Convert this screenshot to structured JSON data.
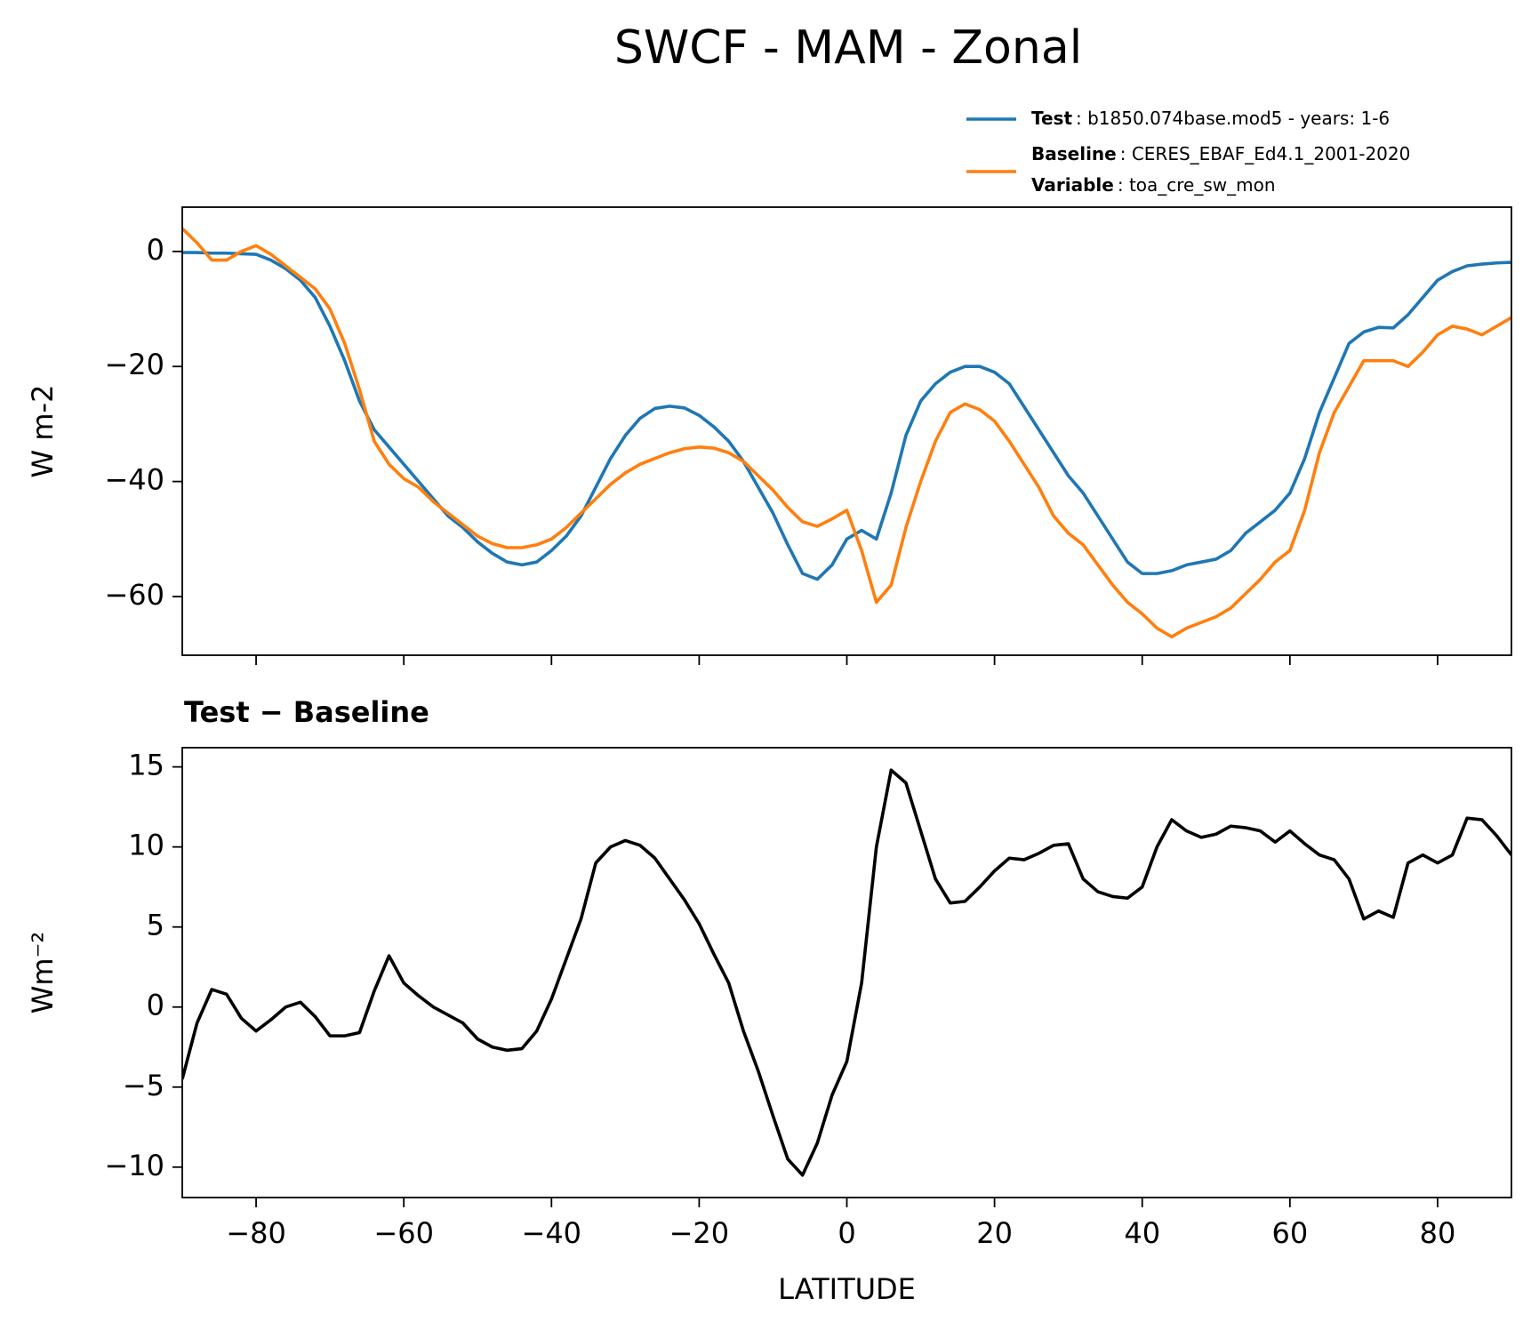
{
  "title": "SWCF - MAM - Zonal",
  "chart_data": [
    {
      "type": "line",
      "ylabel": "W m-2",
      "x": [
        -90,
        -88,
        -86,
        -84,
        -82,
        -80,
        -78,
        -76,
        -74,
        -72,
        -70,
        -68,
        -66,
        -64,
        -62,
        -60,
        -58,
        -56,
        -54,
        -52,
        -50,
        -48,
        -46,
        -44,
        -42,
        -40,
        -38,
        -36,
        -34,
        -32,
        -30,
        -28,
        -26,
        -24,
        -22,
        -20,
        -18,
        -16,
        -14,
        -12,
        -10,
        -8,
        -6,
        -4,
        -2,
        0,
        2,
        4,
        6,
        8,
        10,
        12,
        14,
        16,
        18,
        20,
        22,
        24,
        26,
        28,
        30,
        32,
        34,
        36,
        38,
        40,
        42,
        44,
        46,
        48,
        50,
        52,
        54,
        56,
        58,
        60,
        62,
        64,
        66,
        68,
        70,
        72,
        74,
        76,
        78,
        80,
        82,
        84,
        86,
        88,
        90
      ],
      "series": [
        {
          "name": "Test",
          "label": ": b1850.074base.mod5 - years: 1-6",
          "color": "#1f77b4",
          "values": [
            -0.2,
            -0.2,
            -0.3,
            -0.3,
            -0.4,
            -0.5,
            -1.5,
            -3,
            -5,
            -8,
            -13,
            -19,
            -26,
            -31,
            -34,
            -37,
            -40,
            -43,
            -46,
            -48,
            -50.5,
            -52.5,
            -54,
            -54.5,
            -54,
            -52,
            -49.5,
            -46,
            -41,
            -36,
            -32,
            -29,
            -27.3,
            -26.9,
            -27.2,
            -28.5,
            -30.5,
            -33,
            -36.5,
            -41,
            -45.5,
            -51,
            -56,
            -57,
            -54.5,
            -50,
            -48.5,
            -50,
            -42,
            -32,
            -26,
            -23,
            -21,
            -20,
            -20,
            -21,
            -23,
            -27,
            -31,
            -35,
            -39,
            -42,
            -46,
            -50,
            -54,
            -56,
            -56,
            -55.5,
            -54.5,
            -54,
            -53.5,
            -52,
            -49,
            -47,
            -45,
            -42,
            -36,
            -28,
            -22,
            -16,
            -14,
            -13.2,
            -13.3,
            -11,
            -8,
            -5,
            -3.5,
            -2.5,
            -2.2,
            -2,
            -1.9
          ]
        },
        {
          "name": "Baseline",
          "label": ": CERES_EBAF_Ed4.1_2001-2020",
          "color": "#ff7f0e",
          "values": [
            4,
            1.5,
            -1.5,
            -1.5,
            0,
            1,
            -0.5,
            -2.5,
            -4.5,
            -6.5,
            -10,
            -16,
            -24,
            -33,
            -37,
            -39.5,
            -41,
            -43.5,
            -45.5,
            -47.5,
            -49.5,
            -50.8,
            -51.5,
            -51.5,
            -51,
            -50,
            -48,
            -45.5,
            -43,
            -40.5,
            -38.5,
            -37,
            -36,
            -35,
            -34.3,
            -34,
            -34.2,
            -35,
            -36.5,
            -39,
            -41.5,
            -44.5,
            -47,
            -47.8,
            -46.5,
            -45,
            -52,
            -61,
            -58,
            -48,
            -40,
            -33,
            -28,
            -26.5,
            -27.5,
            -29.5,
            -33,
            -37,
            -41,
            -46,
            -49,
            -51,
            -54.5,
            -58,
            -61,
            -63,
            -65.5,
            -67,
            -65.5,
            -64.5,
            -63.5,
            -62,
            -59.5,
            -57,
            -54,
            -52,
            -45,
            -35,
            -28,
            -23.5,
            -19,
            -19,
            -19,
            -20,
            -17.5,
            -14.5,
            -13,
            -13.5,
            -14.5,
            -13,
            -11.5
          ]
        }
      ],
      "legend_note": {
        "name": "Variable",
        "label": ": toa_cre_sw_mon"
      },
      "xlim": [
        -90,
        90
      ],
      "xticks": [
        -80,
        -60,
        -40,
        -20,
        0,
        20,
        40,
        60,
        80
      ],
      "ylim": [
        -70.2,
        7.7
      ],
      "yticks": [
        {
          "value": -60,
          "label": "−60"
        },
        {
          "value": -40,
          "label": "−40"
        },
        {
          "value": -20,
          "label": "−20"
        },
        0
      ]
    },
    {
      "type": "line",
      "title": "Test − Baseline",
      "ylabel": "Wm⁻²",
      "xlabel": "LATITUDE",
      "x": [
        -90,
        -88,
        -86,
        -84,
        -82,
        -80,
        -78,
        -76,
        -74,
        -72,
        -70,
        -68,
        -66,
        -64,
        -62,
        -60,
        -58,
        -56,
        -54,
        -52,
        -50,
        -48,
        -46,
        -44,
        -42,
        -40,
        -38,
        -36,
        -34,
        -32,
        -30,
        -28,
        -26,
        -24,
        -22,
        -20,
        -18,
        -16,
        -14,
        -12,
        -10,
        -8,
        -6,
        -4,
        -2,
        0,
        2,
        4,
        6,
        8,
        10,
        12,
        14,
        16,
        18,
        20,
        22,
        24,
        26,
        28,
        30,
        32,
        34,
        36,
        38,
        40,
        42,
        44,
        46,
        48,
        50,
        52,
        54,
        56,
        58,
        60,
        62,
        64,
        66,
        68,
        70,
        72,
        74,
        76,
        78,
        80,
        82,
        84,
        86,
        88,
        90
      ],
      "series": [
        {
          "color": "#000000",
          "values": [
            -4.5,
            -1,
            1.1,
            0.8,
            -0.7,
            -1.5,
            -0.8,
            0,
            0.3,
            -0.6,
            -1.8,
            -1.8,
            -1.6,
            1,
            3.2,
            1.5,
            0.7,
            0,
            -0.5,
            -1,
            -2,
            -2.5,
            -2.7,
            -2.6,
            -1.5,
            0.5,
            3,
            5.5,
            9,
            10,
            10.4,
            10.1,
            9.3,
            8,
            6.7,
            5.2,
            3.3,
            1.5,
            -1.5,
            -4,
            -6.8,
            -9.5,
            -10.5,
            -8.5,
            -5.5,
            -3.4,
            1.5,
            10,
            14.8,
            14,
            11,
            8,
            6.5,
            6.6,
            7.5,
            8.5,
            9.3,
            9.2,
            9.6,
            10.1,
            10.2,
            8,
            7.2,
            6.9,
            6.8,
            7.5,
            10,
            11.7,
            11,
            10.6,
            10.8,
            11.3,
            11.2,
            11,
            10.3,
            11,
            10.2,
            9.5,
            9.2,
            8,
            5.5,
            6,
            5.6,
            9,
            9.5,
            9,
            9.5,
            11.8,
            11.7,
            10.7,
            9.5
          ]
        }
      ],
      "xlim": [
        -90,
        90
      ],
      "xticks": [
        {
          "value": -80,
          "label": "−80"
        },
        {
          "value": -60,
          "label": "−60"
        },
        {
          "value": -40,
          "label": "−40"
        },
        {
          "value": -20,
          "label": "−20"
        },
        0,
        20,
        40,
        60,
        80
      ],
      "ylim": [
        -11.9,
        16.2
      ],
      "yticks": [
        {
          "value": -10,
          "label": "−10"
        },
        {
          "value": -5,
          "label": "−5"
        },
        0,
        5,
        10,
        15
      ]
    }
  ]
}
